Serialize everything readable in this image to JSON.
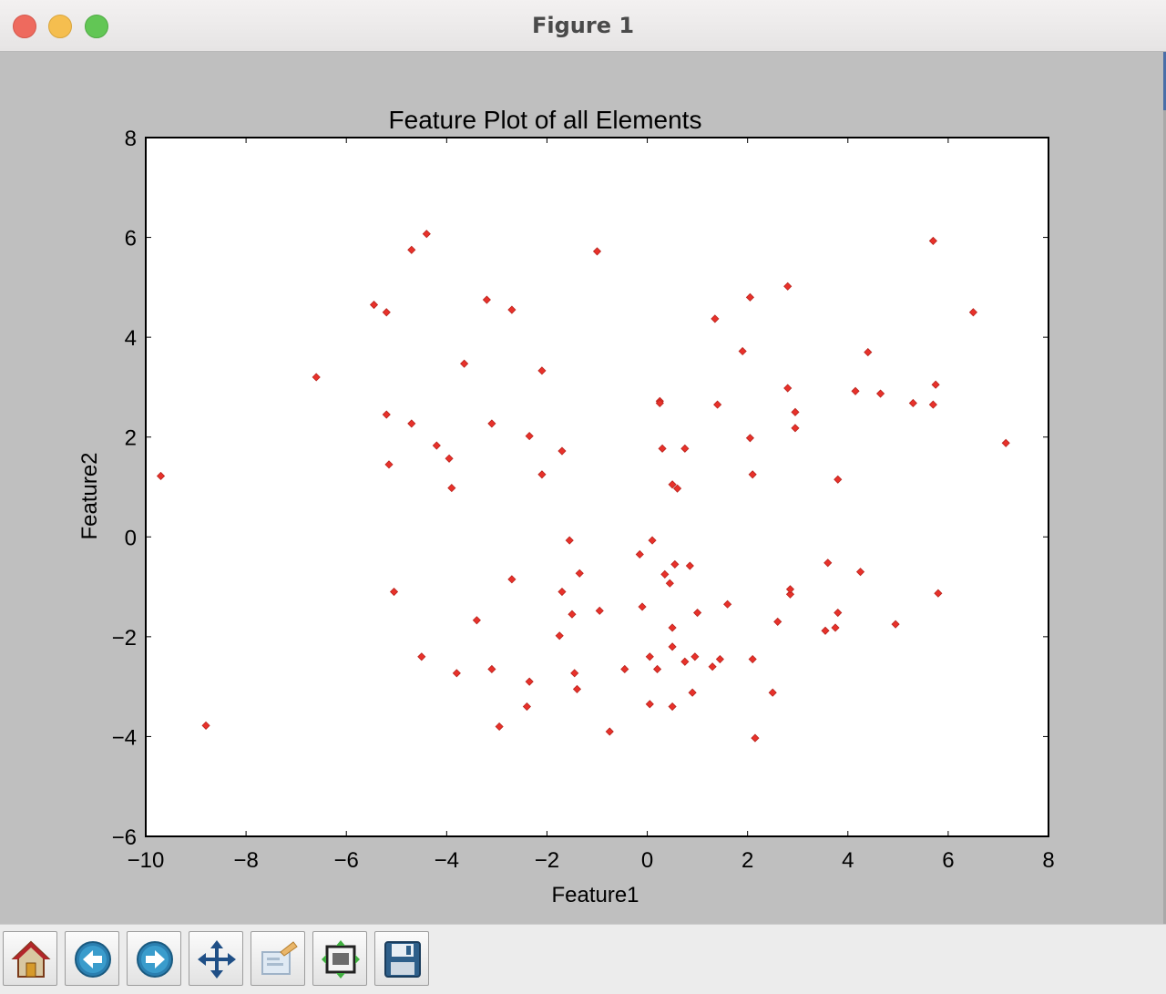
{
  "window": {
    "title": "Figure 1"
  },
  "toolbar": {
    "buttons": [
      {
        "name": "home-button",
        "icon": "home-icon"
      },
      {
        "name": "back-button",
        "icon": "back-arrow-icon"
      },
      {
        "name": "forward-button",
        "icon": "forward-arrow-icon"
      },
      {
        "name": "pan-button",
        "icon": "pan-move-icon"
      },
      {
        "name": "zoom-button",
        "icon": "zoom-rect-icon"
      },
      {
        "name": "configure-subplots-button",
        "icon": "subplots-icon"
      },
      {
        "name": "save-button",
        "icon": "save-disk-icon"
      }
    ]
  },
  "colors": {
    "marker": "#e8312a",
    "background": "#bfbfbf",
    "axes_face": "#ffffff"
  },
  "chart_data": {
    "type": "scatter",
    "title": "Feature Plot of all Elements",
    "xlabel": "Feature1",
    "ylabel": "Feature2",
    "xlim": [
      -10,
      8
    ],
    "ylim": [
      -6,
      8
    ],
    "xticks": [
      -10,
      -8,
      -6,
      -4,
      -2,
      0,
      2,
      4,
      6,
      8
    ],
    "yticks": [
      -6,
      -4,
      -2,
      0,
      2,
      4,
      6,
      8
    ],
    "xtick_labels": [
      "−10",
      "−8",
      "−6",
      "−4",
      "−2",
      "0",
      "2",
      "4",
      "6",
      "8"
    ],
    "ytick_labels": [
      "−6",
      "−4",
      "−2",
      "0",
      "2",
      "4",
      "6",
      "8"
    ],
    "grid": false,
    "marker": "diamond",
    "points": [
      [
        -9.7,
        1.22
      ],
      [
        -8.8,
        -3.78
      ],
      [
        -6.6,
        3.2
      ],
      [
        -5.45,
        4.65
      ],
      [
        -5.2,
        4.5
      ],
      [
        -5.2,
        2.45
      ],
      [
        -5.15,
        1.45
      ],
      [
        -5.05,
        -1.1
      ],
      [
        -4.7,
        5.75
      ],
      [
        -4.7,
        2.27
      ],
      [
        -4.5,
        -2.4
      ],
      [
        -4.4,
        6.07
      ],
      [
        -4.2,
        1.83
      ],
      [
        -3.95,
        1.57
      ],
      [
        -3.9,
        0.98
      ],
      [
        -3.8,
        -2.73
      ],
      [
        -3.65,
        3.47
      ],
      [
        -3.4,
        -1.67
      ],
      [
        -3.2,
        4.75
      ],
      [
        -3.1,
        2.27
      ],
      [
        -3.1,
        -2.65
      ],
      [
        -2.95,
        -3.8
      ],
      [
        -2.7,
        4.55
      ],
      [
        -2.7,
        -0.85
      ],
      [
        -2.4,
        -3.4
      ],
      [
        -2.35,
        2.02
      ],
      [
        -2.35,
        -2.9
      ],
      [
        -2.1,
        3.33
      ],
      [
        -2.1,
        1.25
      ],
      [
        -1.75,
        -1.98
      ],
      [
        -1.7,
        1.72
      ],
      [
        -1.7,
        -1.1
      ],
      [
        -1.55,
        -0.07
      ],
      [
        -1.5,
        -1.55
      ],
      [
        -1.45,
        -2.73
      ],
      [
        -1.4,
        -3.05
      ],
      [
        -1.35,
        -0.73
      ],
      [
        -1.0,
        5.72
      ],
      [
        -0.95,
        -1.48
      ],
      [
        -0.75,
        -3.9
      ],
      [
        -0.45,
        -2.65
      ],
      [
        -0.15,
        -0.35
      ],
      [
        -0.1,
        -1.4
      ],
      [
        0.05,
        -2.4
      ],
      [
        0.05,
        -3.35
      ],
      [
        0.1,
        -0.07
      ],
      [
        0.2,
        -2.65
      ],
      [
        0.25,
        2.72
      ],
      [
        0.25,
        2.68
      ],
      [
        0.3,
        1.77
      ],
      [
        0.35,
        -0.75
      ],
      [
        0.45,
        -0.93
      ],
      [
        0.5,
        -2.2
      ],
      [
        0.5,
        -1.82
      ],
      [
        0.5,
        -3.4
      ],
      [
        0.5,
        1.05
      ],
      [
        0.55,
        -0.55
      ],
      [
        0.6,
        0.97
      ],
      [
        0.75,
        1.77
      ],
      [
        0.75,
        -2.5
      ],
      [
        0.85,
        -0.58
      ],
      [
        0.9,
        -3.12
      ],
      [
        0.95,
        -2.4
      ],
      [
        1.0,
        -1.52
      ],
      [
        1.3,
        -2.6
      ],
      [
        1.35,
        4.37
      ],
      [
        1.4,
        2.65
      ],
      [
        1.45,
        -2.45
      ],
      [
        1.6,
        -1.35
      ],
      [
        1.9,
        3.72
      ],
      [
        2.05,
        4.8
      ],
      [
        2.05,
        1.98
      ],
      [
        2.1,
        1.25
      ],
      [
        2.1,
        -2.45
      ],
      [
        2.15,
        -4.03
      ],
      [
        2.5,
        -3.12
      ],
      [
        2.6,
        -1.7
      ],
      [
        2.8,
        5.02
      ],
      [
        2.8,
        2.98
      ],
      [
        2.85,
        -1.15
      ],
      [
        2.85,
        -1.05
      ],
      [
        2.95,
        2.18
      ],
      [
        2.95,
        2.5
      ],
      [
        3.55,
        -1.88
      ],
      [
        3.6,
        -0.52
      ],
      [
        3.75,
        -1.82
      ],
      [
        3.8,
        1.15
      ],
      [
        3.8,
        -1.52
      ],
      [
        4.15,
        2.92
      ],
      [
        4.25,
        -0.7
      ],
      [
        4.4,
        3.7
      ],
      [
        4.65,
        2.87
      ],
      [
        4.95,
        -1.75
      ],
      [
        5.3,
        2.68
      ],
      [
        5.7,
        5.93
      ],
      [
        5.7,
        2.65
      ],
      [
        5.75,
        3.05
      ],
      [
        5.8,
        -1.13
      ],
      [
        6.5,
        4.5
      ],
      [
        7.15,
        1.88
      ]
    ]
  }
}
